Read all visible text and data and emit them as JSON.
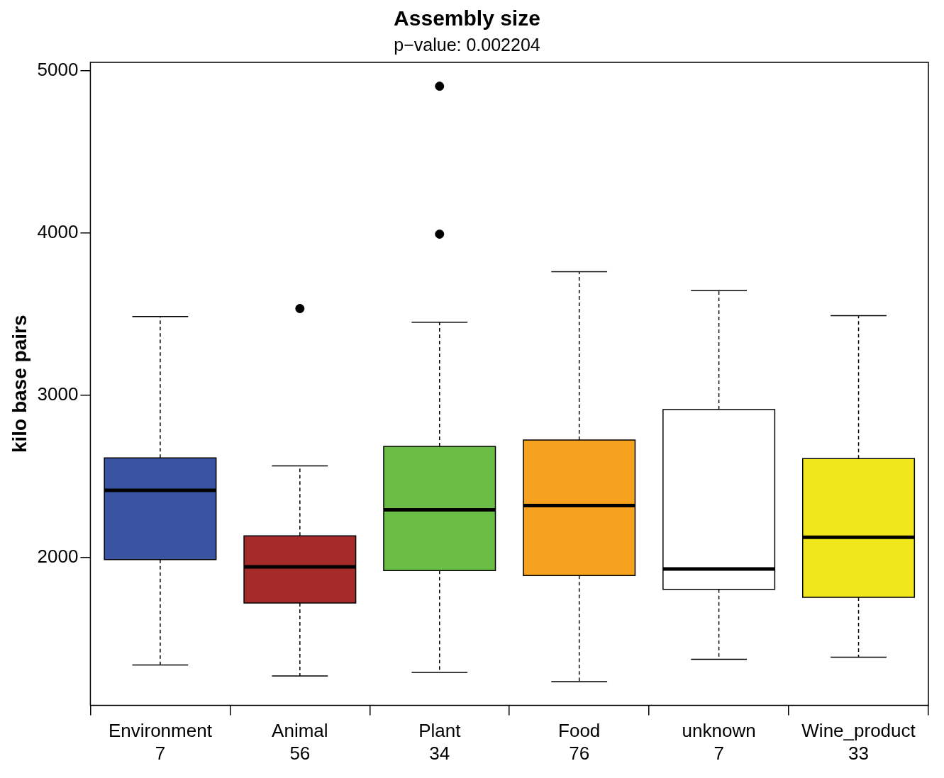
{
  "chart_data": {
    "type": "box",
    "title": "Assembly size",
    "subtitle": "p−value: 0.002204",
    "ylabel": "kilo base pairs",
    "categories": [
      "Environment\n7",
      "Animal\n56",
      "Plant\n34",
      "Food\n76",
      "unknown\n7",
      "Wine_product\n33"
    ],
    "colors": [
      "#3a54a4",
      "#a52a2a",
      "#6abe45",
      "#f7a21e",
      "#ffffff",
      "#f0e81a"
    ],
    "boxes": [
      {
        "low": 1337,
        "q1": 1987,
        "median": 2414,
        "q3": 2614,
        "high": 3486
      },
      {
        "low": 1270,
        "q1": 1720,
        "median": 1942,
        "q3": 2134,
        "high": 2565,
        "outliers": [
          3535
        ]
      },
      {
        "low": 1292,
        "q1": 1920,
        "median": 2294,
        "q3": 2685,
        "high": 3451,
        "outliers": [
          4906,
          3994
        ]
      },
      {
        "low": 1235,
        "q1": 1889,
        "median": 2320,
        "q3": 2725,
        "high": 3762
      },
      {
        "low": 1372,
        "q1": 1804,
        "median": 1929,
        "q3": 2912,
        "high": 3647
      },
      {
        "low": 1386,
        "q1": 1755,
        "median": 2125,
        "q3": 2610,
        "high": 3491
      }
    ],
    "ylim": [
      1088,
      5053
    ],
    "yticks": [
      2000,
      3000,
      4000,
      5000
    ],
    "grid": false,
    "legend": false
  }
}
